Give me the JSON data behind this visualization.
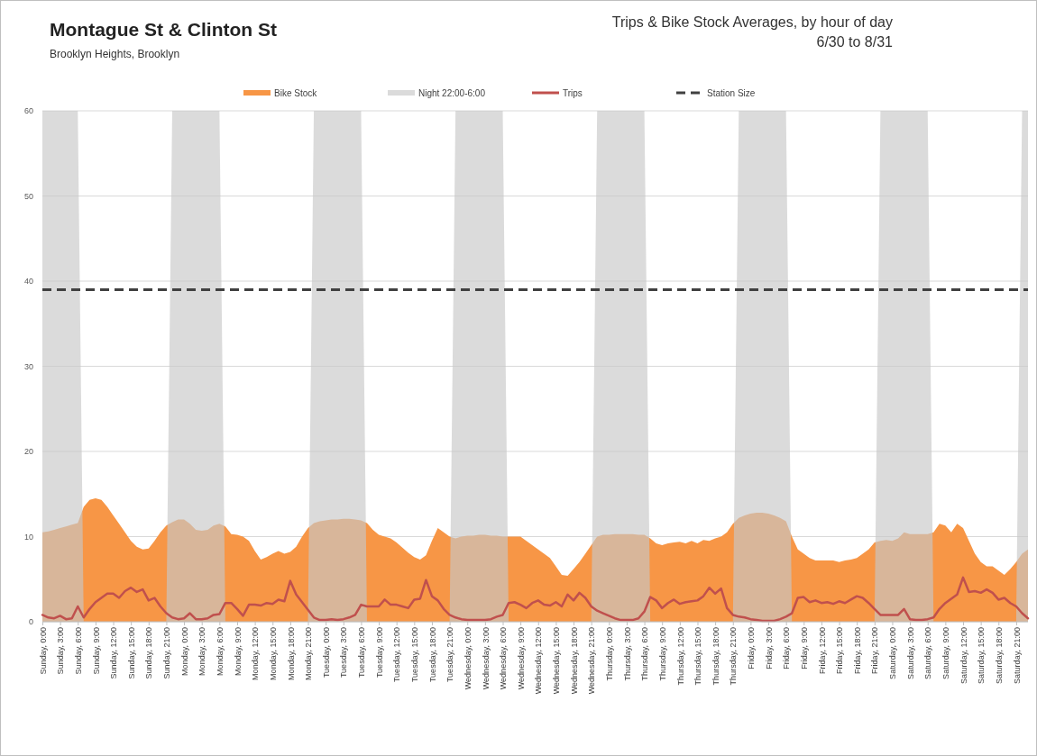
{
  "chart_data": {
    "type": "area",
    "title": "Montague St & Clinton St",
    "subtitle": "Brooklyn Heights, Brooklyn",
    "annotations": [
      "Trips & Bike Stock Averages, by hour of day",
      "6/30 to 8/31"
    ],
    "categories": [
      "Sunday, 0:00",
      null,
      null,
      "Sunday, 3:00",
      null,
      null,
      "Sunday, 6:00",
      null,
      null,
      "Sunday, 9:00",
      null,
      null,
      "Sunday, 12:00",
      null,
      null,
      "Sunday, 15:00",
      null,
      null,
      "Sunday, 18:00",
      null,
      null,
      "Sunday, 21:00",
      null,
      null,
      "Monday, 0:00",
      null,
      null,
      "Monday, 3:00",
      null,
      null,
      "Monday, 6:00",
      null,
      null,
      "Monday, 9:00",
      null,
      null,
      "Monday, 12:00",
      null,
      null,
      "Monday, 15:00",
      null,
      null,
      "Monday, 18:00",
      null,
      null,
      "Monday, 21:00",
      null,
      null,
      "Tuesday, 0:00",
      null,
      null,
      "Tuesday, 3:00",
      null,
      null,
      "Tuesday, 6:00",
      null,
      null,
      "Tuesday, 9:00",
      null,
      null,
      "Tuesday, 12:00",
      null,
      null,
      "Tuesday, 15:00",
      null,
      null,
      "Tuesday, 18:00",
      null,
      null,
      "Tuesday, 21:00",
      null,
      null,
      "Wednesday, 0:00",
      null,
      null,
      "Wednesday, 3:00",
      null,
      null,
      "Wednesday, 6:00",
      null,
      null,
      "Wednesday, 9:00",
      null,
      null,
      "Wednesday, 12:00",
      null,
      null,
      "Wednesday, 15:00",
      null,
      null,
      "Wednesday, 18:00",
      null,
      null,
      "Wednesday, 21:00",
      null,
      null,
      "Thursday, 0:00",
      null,
      null,
      "Thursday, 3:00",
      null,
      null,
      "Thursday, 6:00",
      null,
      null,
      "Thursday, 9:00",
      null,
      null,
      "Thursday, 12:00",
      null,
      null,
      "Thursday, 15:00",
      null,
      null,
      "Thursday, 18:00",
      null,
      null,
      "Thursday, 21:00",
      null,
      null,
      "Friday, 0:00",
      null,
      null,
      "Friday, 3:00",
      null,
      null,
      "Friday, 6:00",
      null,
      null,
      "Friday, 9:00",
      null,
      null,
      "Friday, 12:00",
      null,
      null,
      "Friday, 15:00",
      null,
      null,
      "Friday, 18:00",
      null,
      null,
      "Friday, 21:00",
      null,
      null,
      "Saturday, 0:00",
      null,
      null,
      "Saturday, 3:00",
      null,
      null,
      "Saturday, 6:00",
      null,
      null,
      "Saturday, 9:00",
      null,
      null,
      "Saturday, 12:00",
      null,
      null,
      "Saturday, 15:00",
      null,
      null,
      "Saturday, 18:00",
      null,
      null,
      "Saturday, 21:00",
      null,
      null
    ],
    "series": [
      {
        "name": "Bike Stock",
        "color": "#f79646",
        "values": [
          10.5,
          10.6,
          10.8,
          11,
          11.2,
          11.4,
          11.6,
          13.5,
          14.3,
          14.5,
          14.3,
          13.5,
          12.5,
          11.5,
          10.5,
          9.5,
          8.8,
          8.5,
          8.6,
          9.5,
          10.5,
          11.3,
          11.7,
          12,
          12,
          11.5,
          10.8,
          10.7,
          10.8,
          11.3,
          11.5,
          11.2,
          10.3,
          10.2,
          10,
          9.5,
          8.3,
          7.3,
          7.6,
          8,
          8.3,
          8,
          8.2,
          8.8,
          10,
          11,
          11.6,
          11.8,
          11.9,
          12,
          12,
          12.1,
          12.1,
          12,
          11.9,
          11.6,
          10.8,
          10.2,
          10,
          9.8,
          9.3,
          8.7,
          8.1,
          7.6,
          7.3,
          7.8,
          9.5,
          11,
          10.5,
          10,
          9.8,
          10,
          10.1,
          10.1,
          10.2,
          10.2,
          10.1,
          10.1,
          10,
          10,
          10,
          10,
          9.5,
          9,
          8.5,
          8,
          7.5,
          6.5,
          5.5,
          5.4,
          6.2,
          7,
          8,
          9,
          10,
          10.2,
          10.2,
          10.3,
          10.3,
          10.3,
          10.3,
          10.2,
          10.2,
          9.8,
          9.2,
          9,
          9.2,
          9.3,
          9.4,
          9.2,
          9.5,
          9.2,
          9.6,
          9.5,
          9.8,
          10,
          10.5,
          11.5,
          12.2,
          12.5,
          12.7,
          12.8,
          12.8,
          12.7,
          12.5,
          12.2,
          11.8,
          10,
          8.5,
          8,
          7.5,
          7.2,
          7.2,
          7.2,
          7.2,
          7,
          7.2,
          7.3,
          7.5,
          8,
          8.5,
          9.3,
          9.5,
          9.6,
          9.5,
          9.8,
          10.5,
          10.3,
          10.3,
          10.3,
          10.3,
          10.5,
          11.5,
          11.3,
          10.5,
          11.5,
          11,
          9.5,
          8,
          7,
          6.5,
          6.5,
          6,
          5.5,
          6.2,
          7,
          8,
          8.5
        ]
      },
      {
        "name": "Night 22:00-6:00",
        "color": "#c8c8c8",
        "values": [
          60,
          60,
          60,
          60,
          60,
          60,
          60,
          0,
          0,
          0,
          0,
          0,
          0,
          0,
          0,
          0,
          0,
          0,
          0,
          0,
          0,
          0,
          60,
          60,
          60,
          60,
          60,
          60,
          60,
          60,
          60,
          0,
          0,
          0,
          0,
          0,
          0,
          0,
          0,
          0,
          0,
          0,
          0,
          0,
          0,
          0,
          60,
          60,
          60,
          60,
          60,
          60,
          60,
          60,
          60,
          0,
          0,
          0,
          0,
          0,
          0,
          0,
          0,
          0,
          0,
          0,
          0,
          0,
          0,
          0,
          60,
          60,
          60,
          60,
          60,
          60,
          60,
          60,
          60,
          0,
          0,
          0,
          0,
          0,
          0,
          0,
          0,
          0,
          0,
          0,
          0,
          0,
          0,
          0,
          60,
          60,
          60,
          60,
          60,
          60,
          60,
          60,
          60,
          0,
          0,
          0,
          0,
          0,
          0,
          0,
          0,
          0,
          0,
          0,
          0,
          0,
          0,
          0,
          60,
          60,
          60,
          60,
          60,
          60,
          60,
          60,
          60,
          0,
          0,
          0,
          0,
          0,
          0,
          0,
          0,
          0,
          0,
          0,
          0,
          0,
          0,
          0,
          60,
          60,
          60,
          60,
          60,
          60,
          60,
          60,
          60,
          0,
          0,
          0,
          0,
          0,
          0,
          0,
          0,
          0,
          0,
          0,
          0,
          0,
          0,
          0,
          60,
          60
        ]
      },
      {
        "name": "Trips",
        "type": "line",
        "color": "#c0504d",
        "values": [
          0.8,
          0.5,
          0.4,
          0.7,
          0.3,
          0.4,
          1.8,
          0.5,
          1.5,
          2.3,
          2.8,
          3.3,
          3.3,
          2.8,
          3.6,
          4,
          3.5,
          3.8,
          2.5,
          2.8,
          1.8,
          1,
          0.5,
          0.3,
          0.4,
          1,
          0.3,
          0.3,
          0.4,
          0.8,
          0.9,
          2.2,
          2.2,
          1.5,
          0.7,
          2,
          2,
          1.9,
          2.2,
          2.1,
          2.6,
          2.4,
          4.8,
          3.2,
          2.3,
          1.4,
          0.5,
          0.2,
          0.2,
          0.3,
          0.2,
          0.3,
          0.5,
          0.8,
          2,
          1.8,
          1.8,
          1.8,
          2.6,
          2,
          2,
          1.8,
          1.6,
          2.6,
          2.7,
          4.9,
          3,
          2.5,
          1.5,
          0.8,
          0.5,
          0.3,
          0.2,
          0.2,
          0.2,
          0.2,
          0.3,
          0.6,
          0.8,
          2.2,
          2.3,
          2,
          1.6,
          2.2,
          2.5,
          2,
          1.9,
          2.3,
          1.8,
          3.2,
          2.5,
          3.4,
          2.8,
          1.8,
          1.3,
          1,
          0.7,
          0.4,
          0.2,
          0.2,
          0.2,
          0.4,
          1.2,
          2.9,
          2.5,
          1.6,
          2.2,
          2.6,
          2.1,
          2.3,
          2.4,
          2.5,
          3,
          4,
          3.3,
          3.9,
          1.6,
          0.8,
          0.6,
          0.5,
          0.3,
          0.2,
          0.1,
          0.1,
          0.1,
          0.3,
          0.6,
          1,
          2.8,
          2.9,
          2.3,
          2.5,
          2.2,
          2.3,
          2.1,
          2.4,
          2.2,
          2.6,
          3,
          2.8,
          2.2,
          1.5,
          0.8,
          0.8,
          0.8,
          0.8,
          1.5,
          0.3,
          0.2,
          0.2,
          0.3,
          0.5,
          1.5,
          2.2,
          2.7,
          3.2,
          5.2,
          3.5,
          3.6,
          3.4,
          3.8,
          3.4,
          2.6,
          2.8,
          2.2,
          1.8,
          1,
          0.4
        ]
      }
    ],
    "ref_lines": [
      {
        "axis": "y",
        "value": 39,
        "label": "Station Size",
        "color": "#404040",
        "line_style": "dashed"
      }
    ],
    "ylim": [
      0,
      60
    ],
    "yticks": [
      0,
      10,
      20,
      30,
      40,
      50,
      60
    ],
    "grid": "y",
    "legend": "top"
  }
}
